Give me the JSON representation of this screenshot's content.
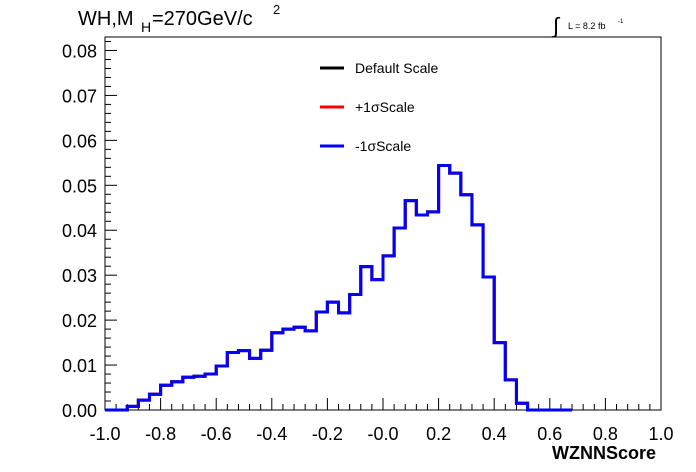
{
  "chart_data": {
    "type": "histogram",
    "title_main": "WH,M",
    "title_sub": "H",
    "title_rest": "=270GeV/c",
    "title_sup": "2",
    "lumi_prefix": "L = 8.2 fb",
    "lumi_sup": "-1",
    "xlabel": "WZNNScore",
    "ylabel": "",
    "xlim": [
      -1.0,
      1.0
    ],
    "ylim": [
      0.0,
      0.083
    ],
    "x_ticks": [
      "-1.0",
      "-0.8",
      "-0.6",
      "-0.4",
      "-0.2",
      "-0.0",
      "0.2",
      "0.4",
      "0.6",
      "0.8",
      "1.0"
    ],
    "y_ticks": [
      "0.00",
      "0.01",
      "0.02",
      "0.03",
      "0.04",
      "0.05",
      "0.06",
      "0.07",
      "0.08"
    ],
    "bin_edges_start": -1.0,
    "bin_width": 0.04,
    "series": [
      {
        "name": "Default Scale",
        "color": "#000000",
        "values": [
          0.0,
          0.0,
          0.0008,
          0.0022,
          0.0035,
          0.0055,
          0.0063,
          0.0073,
          0.0075,
          0.008,
          0.0098,
          0.0128,
          0.0132,
          0.0115,
          0.0133,
          0.0172,
          0.018,
          0.0184,
          0.0176,
          0.0218,
          0.024,
          0.0216,
          0.0257,
          0.0319,
          0.029,
          0.0343,
          0.0405,
          0.0466,
          0.0434,
          0.0441,
          0.0544,
          0.0527,
          0.0479,
          0.0412,
          0.0296,
          0.015,
          0.0067,
          0.0015,
          0.0,
          0.0,
          0.0,
          0.0
        ]
      },
      {
        "name": "+1σScale",
        "color": "#ff0000",
        "values": [
          0.0,
          0.0,
          0.0008,
          0.0022,
          0.0035,
          0.0055,
          0.0063,
          0.0073,
          0.0075,
          0.008,
          0.0098,
          0.0128,
          0.0132,
          0.0115,
          0.0133,
          0.0172,
          0.018,
          0.0184,
          0.0176,
          0.0218,
          0.024,
          0.0216,
          0.0257,
          0.0319,
          0.029,
          0.0343,
          0.0405,
          0.0466,
          0.0434,
          0.0441,
          0.0544,
          0.0527,
          0.0479,
          0.0412,
          0.0296,
          0.015,
          0.0067,
          0.0015,
          0.0,
          0.0,
          0.0,
          0.0
        ]
      },
      {
        "name": "-1σScale",
        "color": "#0000ff",
        "values": [
          0.0,
          0.0,
          0.0008,
          0.0022,
          0.0035,
          0.0055,
          0.0063,
          0.0073,
          0.0075,
          0.008,
          0.0098,
          0.0128,
          0.0132,
          0.0115,
          0.0133,
          0.0172,
          0.018,
          0.0184,
          0.0176,
          0.0218,
          0.024,
          0.0216,
          0.0257,
          0.0319,
          0.029,
          0.0343,
          0.0405,
          0.0466,
          0.0434,
          0.0441,
          0.0544,
          0.0527,
          0.0479,
          0.0412,
          0.0296,
          0.015,
          0.0067,
          0.0015,
          0.0,
          0.0,
          0.0,
          0.0
        ]
      }
    ],
    "legend": "top-center",
    "grid": false
  }
}
